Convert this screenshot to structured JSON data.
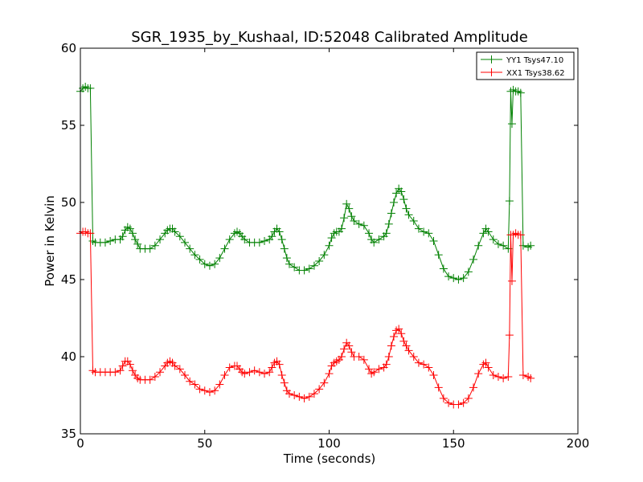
{
  "chart_data": {
    "type": "line",
    "title": "SGR_1935_by_Kushaal, ID:52048 Calibrated Amplitude",
    "xlabel": "Time (seconds)",
    "ylabel": "Power in Kelvin",
    "xlim": [
      0,
      200
    ],
    "ylim": [
      35,
      60
    ],
    "xticks": [
      "0",
      "50",
      "100",
      "150",
      "200"
    ],
    "yticks": [
      "35",
      "40",
      "45",
      "50",
      "55",
      "60"
    ],
    "grid": false,
    "legend_position": "top-right",
    "marker": "plus",
    "series": [
      {
        "name": "YY1 Tsys47.10",
        "color": "#008000",
        "x": [
          0,
          1,
          2,
          3,
          4,
          5,
          6,
          8,
          10,
          12,
          14,
          16,
          17,
          18,
          19,
          20,
          21,
          22,
          23,
          24,
          26,
          28,
          30,
          32,
          34,
          35,
          36,
          37,
          38,
          40,
          42,
          44,
          46,
          48,
          50,
          52,
          54,
          56,
          58,
          60,
          62,
          63,
          64,
          65,
          66,
          68,
          70,
          72,
          74,
          76,
          77,
          78,
          79,
          80,
          81,
          82,
          83,
          84,
          86,
          88,
          90,
          92,
          94,
          96,
          98,
          100,
          101,
          102,
          103,
          104,
          105,
          106,
          107,
          108,
          109,
          110,
          112,
          114,
          116,
          117,
          118,
          120,
          122,
          123,
          124,
          125,
          126,
          127,
          128,
          129,
          130,
          131,
          132,
          134,
          136,
          138,
          140,
          142,
          144,
          146,
          148,
          150,
          152,
          154,
          156,
          158,
          160,
          162,
          163,
          164,
          166,
          168,
          170,
          172,
          172.5,
          173,
          173.5,
          174,
          175,
          176,
          177,
          178,
          180,
          181
        ],
        "y": [
          57.2,
          57.4,
          57.5,
          57.4,
          57.4,
          47.5,
          47.4,
          47.4,
          47.4,
          47.5,
          47.6,
          47.6,
          47.8,
          48.2,
          48.4,
          48.3,
          48.0,
          47.6,
          47.3,
          47.0,
          47.0,
          47.0,
          47.2,
          47.6,
          48.0,
          48.2,
          48.3,
          48.3,
          48.1,
          47.8,
          47.4,
          47.0,
          46.6,
          46.3,
          46.0,
          45.9,
          46.0,
          46.4,
          47.0,
          47.6,
          48.0,
          48.1,
          48.0,
          47.8,
          47.6,
          47.4,
          47.4,
          47.4,
          47.5,
          47.6,
          47.8,
          48.1,
          48.3,
          48.1,
          47.6,
          47.0,
          46.4,
          46.0,
          45.8,
          45.6,
          45.6,
          45.7,
          45.9,
          46.2,
          46.6,
          47.2,
          47.7,
          48.0,
          48.1,
          48.1,
          48.3,
          49.0,
          49.9,
          49.6,
          49.1,
          48.8,
          48.6,
          48.5,
          48.0,
          47.6,
          47.4,
          47.6,
          47.8,
          48.0,
          48.6,
          49.3,
          50.0,
          50.6,
          50.9,
          50.7,
          50.2,
          49.6,
          49.2,
          48.8,
          48.3,
          48.1,
          48.0,
          47.5,
          46.6,
          45.7,
          45.2,
          45.1,
          45.0,
          45.1,
          45.5,
          46.3,
          47.2,
          48.0,
          48.3,
          48.1,
          47.6,
          47.3,
          47.2,
          47.0,
          50.1,
          57.2,
          55.1,
          57.3,
          57.2,
          57.2,
          57.1,
          47.2,
          47.1,
          47.2
        ]
      },
      {
        "name": "XX1 Tsys38.62",
        "color": "#ff0000",
        "x": [
          0,
          1,
          2,
          3,
          4,
          5,
          6,
          8,
          10,
          12,
          14,
          16,
          17,
          18,
          19,
          20,
          21,
          22,
          23,
          24,
          26,
          28,
          30,
          32,
          34,
          35,
          36,
          37,
          38,
          40,
          42,
          44,
          46,
          48,
          50,
          52,
          54,
          56,
          58,
          60,
          62,
          63,
          64,
          65,
          66,
          68,
          70,
          72,
          74,
          76,
          77,
          78,
          79,
          80,
          81,
          82,
          83,
          84,
          86,
          88,
          90,
          92,
          94,
          96,
          98,
          100,
          101,
          102,
          103,
          104,
          105,
          106,
          107,
          108,
          109,
          110,
          112,
          114,
          116,
          117,
          118,
          120,
          122,
          123,
          124,
          125,
          126,
          127,
          128,
          129,
          130,
          131,
          132,
          134,
          136,
          138,
          140,
          142,
          144,
          146,
          148,
          150,
          152,
          154,
          156,
          158,
          160,
          162,
          163,
          164,
          166,
          168,
          170,
          172,
          172.5,
          173,
          173.5,
          174,
          175,
          176,
          177,
          178,
          180,
          181
        ],
        "y": [
          48.0,
          48.1,
          48.1,
          48.0,
          48.0,
          39.1,
          39.0,
          39.0,
          39.0,
          39.0,
          39.0,
          39.1,
          39.4,
          39.7,
          39.7,
          39.5,
          39.1,
          38.8,
          38.6,
          38.5,
          38.5,
          38.5,
          38.7,
          39.0,
          39.4,
          39.6,
          39.7,
          39.6,
          39.4,
          39.2,
          38.8,
          38.4,
          38.2,
          37.9,
          37.8,
          37.7,
          37.8,
          38.2,
          38.8,
          39.3,
          39.4,
          39.4,
          39.2,
          39.0,
          38.9,
          39.0,
          39.1,
          39.0,
          38.9,
          39.0,
          39.3,
          39.6,
          39.7,
          39.5,
          38.8,
          38.3,
          37.8,
          37.6,
          37.5,
          37.4,
          37.3,
          37.4,
          37.6,
          37.9,
          38.3,
          38.9,
          39.4,
          39.6,
          39.7,
          39.8,
          40.0,
          40.5,
          40.9,
          40.7,
          40.3,
          40.0,
          40.0,
          39.8,
          39.2,
          38.9,
          39.0,
          39.2,
          39.3,
          39.5,
          40.0,
          40.7,
          41.3,
          41.7,
          41.8,
          41.5,
          41.0,
          40.7,
          40.4,
          40.0,
          39.6,
          39.5,
          39.3,
          38.8,
          38.0,
          37.3,
          37.0,
          36.9,
          36.9,
          37.0,
          37.3,
          38.0,
          38.9,
          39.5,
          39.6,
          39.3,
          38.8,
          38.7,
          38.6,
          38.7,
          41.4,
          47.9,
          44.9,
          47.9,
          48.0,
          47.9,
          47.9,
          38.8,
          38.7,
          38.6
        ]
      }
    ]
  }
}
